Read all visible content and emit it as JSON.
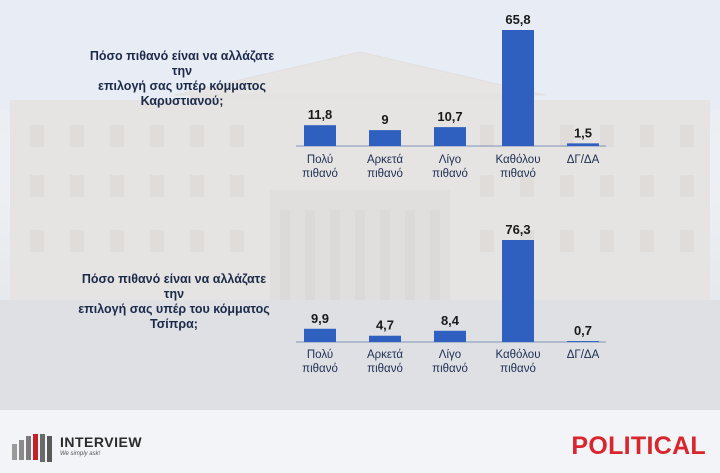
{
  "chart_data": [
    {
      "type": "bar",
      "title": "Πόσο πιθανό είναι να αλλάζατε την επιλογή σας υπέρ κόμματος Καρυστιανού;",
      "title_lines": [
        "Πόσο πιθανό είναι να αλλάζατε την",
        "επιλογή σας υπέρ κόμματος",
        "Καρυστιανού;"
      ],
      "categories": [
        [
          "Πολύ",
          "πιθανό"
        ],
        [
          "Αρκετά",
          "πιθανό"
        ],
        [
          "Λίγο",
          "πιθανό"
        ],
        [
          "Καθόλου",
          "πιθανό"
        ],
        [
          "ΔΓ/ΔΑ"
        ]
      ],
      "values": [
        11.8,
        9,
        10.7,
        65.8,
        1.5
      ],
      "value_labels": [
        "11,8",
        "9",
        "10,7",
        "65,8",
        "1,5"
      ],
      "ylim": [
        0,
        70
      ],
      "grid": false,
      "bar_color": "#2f5fbf"
    },
    {
      "type": "bar",
      "title": "Πόσο πιθανό είναι να αλλάζατε την επιλογή σας υπέρ του κόμματος Τσίπρα;",
      "title_lines": [
        "Πόσο πιθανό είναι να αλλάζατε την",
        "επιλογή σας υπέρ του κόμματος",
        "Τσίπρα;"
      ],
      "categories": [
        [
          "Πολύ",
          "πιθανό"
        ],
        [
          "Αρκετά",
          "πιθανό"
        ],
        [
          "Λίγο",
          "πιθανό"
        ],
        [
          "Καθόλου",
          "πιθανό"
        ],
        [
          "ΔΓ/ΔΑ"
        ]
      ],
      "values": [
        9.9,
        4.7,
        8.4,
        76.3,
        0.7
      ],
      "value_labels": [
        "9,9",
        "4,7",
        "8,4",
        "76,3",
        "0,7"
      ],
      "ylim": [
        0,
        80
      ],
      "grid": false,
      "bar_color": "#2f5fbf"
    }
  ],
  "branding": {
    "interview": "INTERVIEW",
    "interview_tagline": "We simply ask!",
    "political": "POLITICAL"
  }
}
